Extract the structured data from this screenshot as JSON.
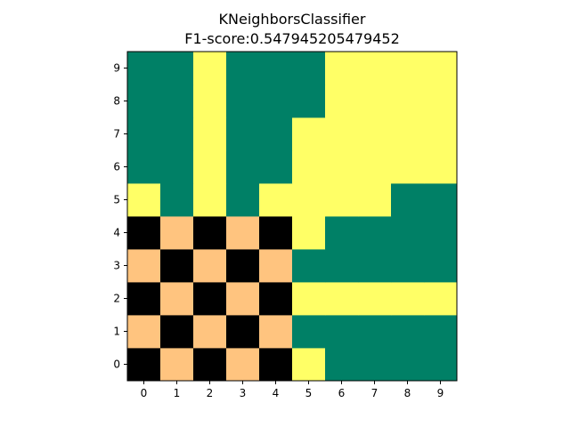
{
  "chart_data": {
    "type": "heatmap",
    "title": "KNeighborsClassifier",
    "subtitle": "F1-score:0.547945205479452",
    "x_ticks": [
      "0",
      "1",
      "2",
      "3",
      "4",
      "5",
      "6",
      "7",
      "8",
      "9"
    ],
    "y_ticks": [
      "0",
      "1",
      "2",
      "3",
      "4",
      "5",
      "6",
      "7",
      "8",
      "9"
    ],
    "xlim": [
      -0.5,
      9.5
    ],
    "ylim": [
      -0.5,
      9.5
    ],
    "grid": false,
    "colors": {
      "0": "#000000",
      "1": "#ffc47f",
      "2": "#ffff66",
      "3": "#008066"
    },
    "rows_bottom_to_top": [
      [
        0,
        1,
        0,
        1,
        0,
        2,
        3,
        3,
        3,
        3
      ],
      [
        1,
        0,
        1,
        0,
        1,
        3,
        3,
        3,
        3,
        3
      ],
      [
        0,
        1,
        0,
        1,
        0,
        2,
        2,
        2,
        2,
        2
      ],
      [
        1,
        0,
        1,
        0,
        1,
        3,
        3,
        3,
        3,
        3
      ],
      [
        0,
        1,
        0,
        1,
        0,
        2,
        3,
        3,
        3,
        3
      ],
      [
        2,
        3,
        2,
        3,
        2,
        2,
        2,
        2,
        3,
        3
      ],
      [
        3,
        3,
        2,
        3,
        3,
        2,
        2,
        2,
        2,
        2
      ],
      [
        3,
        3,
        2,
        3,
        3,
        2,
        2,
        2,
        2,
        2
      ],
      [
        3,
        3,
        2,
        3,
        3,
        3,
        2,
        2,
        2,
        2
      ],
      [
        3,
        3,
        2,
        3,
        3,
        3,
        2,
        2,
        2,
        2
      ]
    ]
  }
}
